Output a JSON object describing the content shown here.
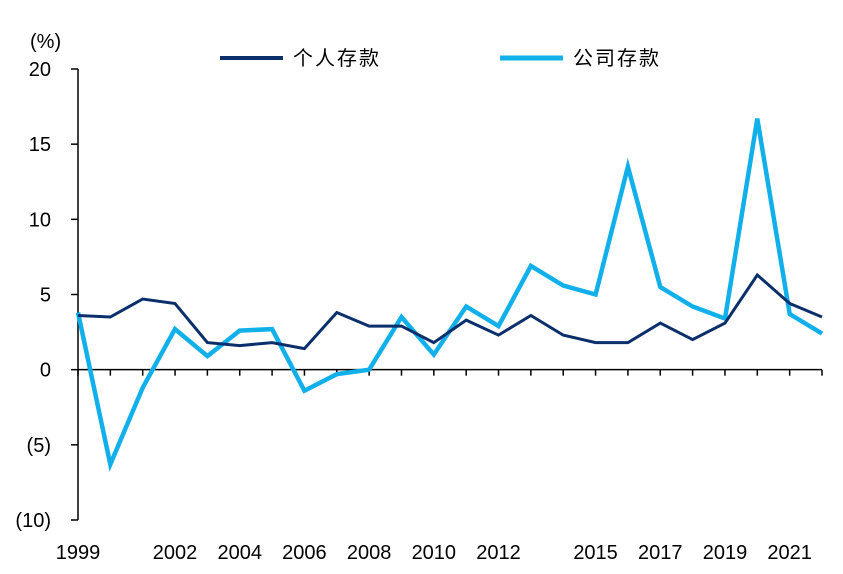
{
  "chart_data": {
    "type": "line",
    "unit": "(%)",
    "x": [
      1999,
      2000,
      2001,
      2002,
      2003,
      2004,
      2005,
      2006,
      2007,
      2008,
      2009,
      2010,
      2011,
      2012,
      2013,
      2014,
      2015,
      2016,
      2017,
      2018,
      2019,
      2020,
      2021,
      2022
    ],
    "x_tick_labels": [
      "1999",
      "2002",
      "2004",
      "2006",
      "2008",
      "2010",
      "2012",
      "2015",
      "2017",
      "2019",
      "2021"
    ],
    "y_tick_labels": [
      "20",
      "15",
      "10",
      "5",
      "0",
      "(5)",
      "(10)"
    ],
    "y_ticks": [
      20,
      15,
      10,
      5,
      0,
      -5,
      -10
    ],
    "ylim": [
      -10,
      20
    ],
    "grid": false,
    "legend_position": "top",
    "series": [
      {
        "name": "个人存款",
        "color": "#0b2f6b",
        "values": [
          3.6,
          3.5,
          4.7,
          4.4,
          1.8,
          1.6,
          1.8,
          1.4,
          3.8,
          2.9,
          2.9,
          1.8,
          3.3,
          2.3,
          3.6,
          2.3,
          1.8,
          1.8,
          3.1,
          2.0,
          3.1,
          6.3,
          4.4,
          3.5
        ]
      },
      {
        "name": "公司存款",
        "color": "#12b0ea",
        "values": [
          3.8,
          -6.3,
          -1.2,
          2.7,
          0.9,
          2.6,
          2.7,
          -1.4,
          -0.3,
          0.0,
          3.5,
          1.0,
          4.2,
          2.9,
          6.9,
          5.6,
          5.0,
          13.5,
          5.5,
          4.2,
          3.4,
          16.7,
          3.7,
          2.4
        ]
      }
    ]
  }
}
